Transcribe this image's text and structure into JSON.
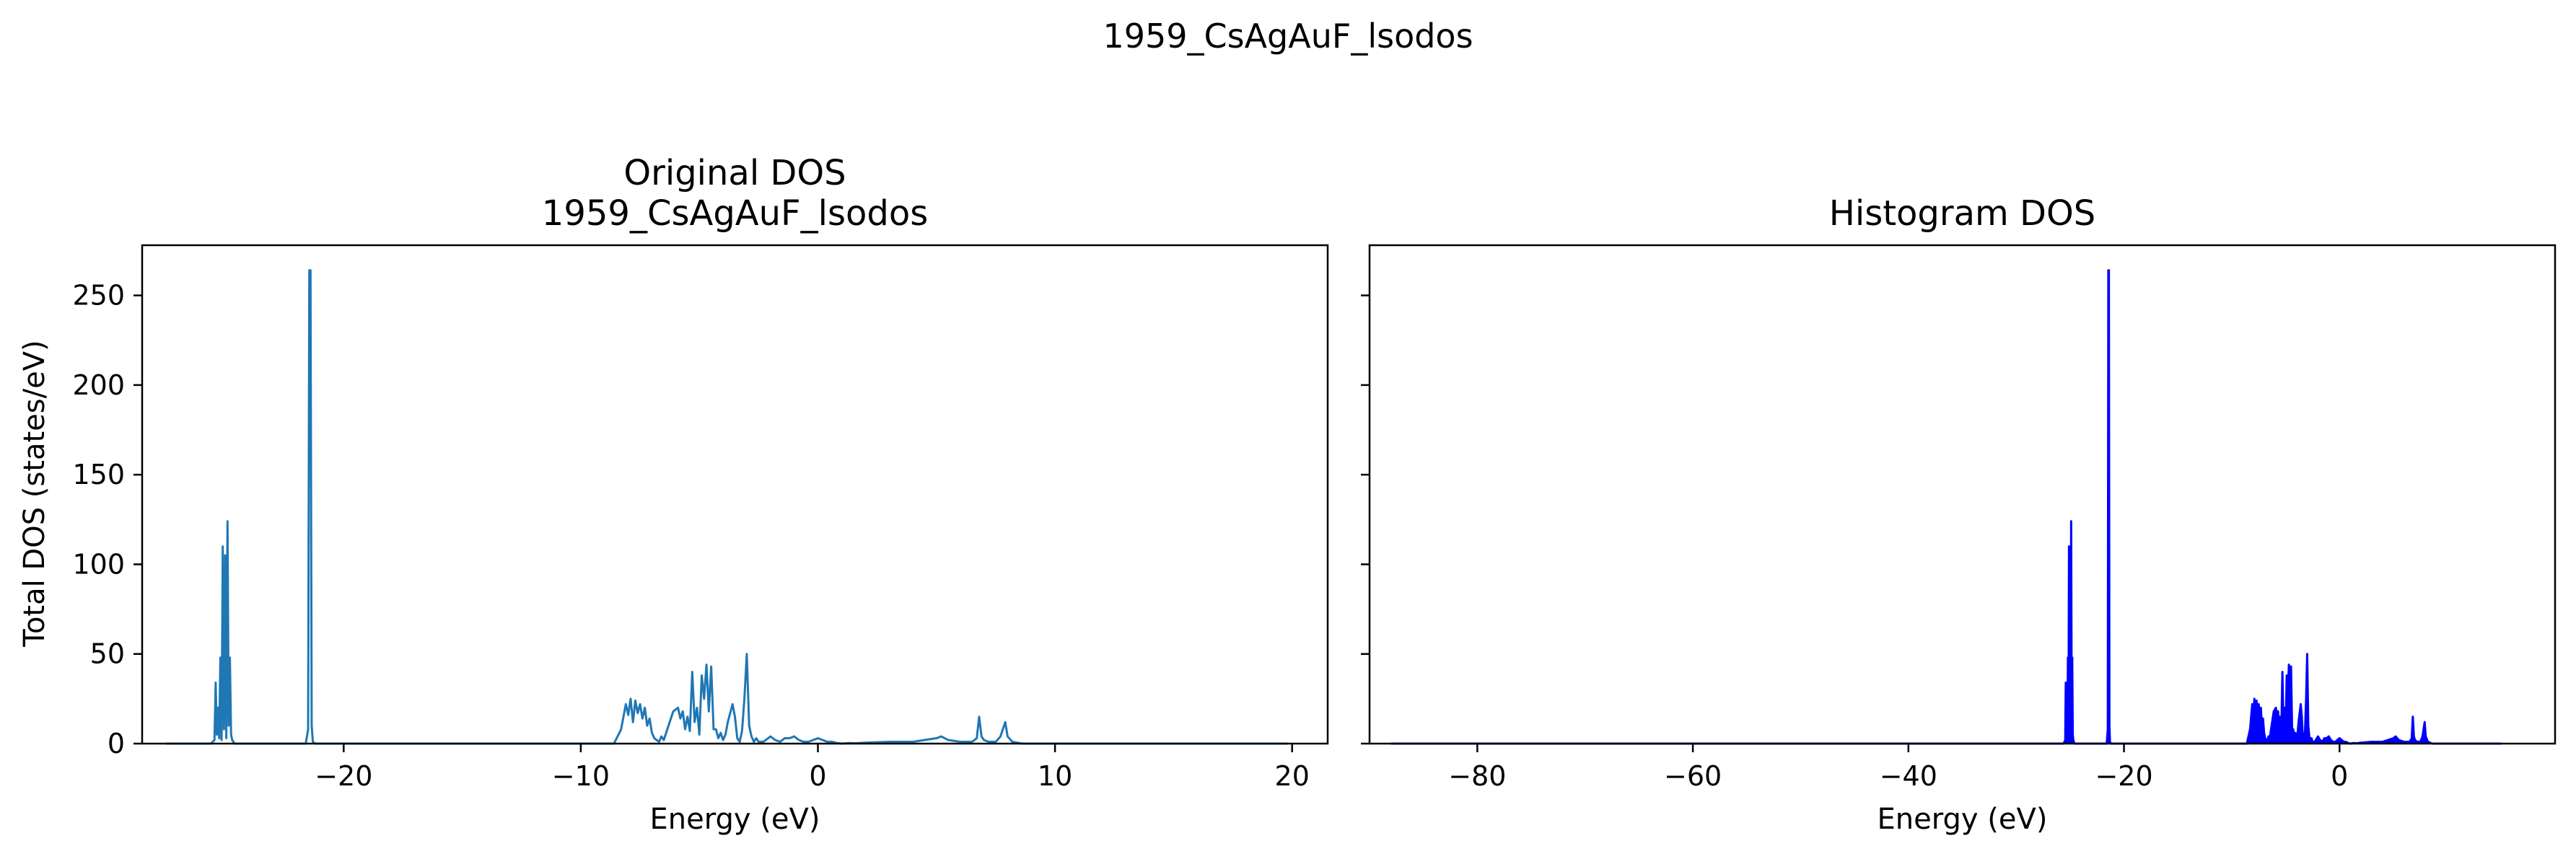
{
  "figure": {
    "suptitle": "1959_CsAgAuF_lsodos"
  },
  "chart_data": [
    {
      "type": "line",
      "title": "Original DOS",
      "subtitle": "1959_CsAgAuF_lsodos",
      "xlabel": "Energy (eV)",
      "ylabel": "Total DOS (states/eV)",
      "xlim": [
        -28.5,
        21.5
      ],
      "ylim": [
        0,
        278
      ],
      "xticks": [
        -20,
        -10,
        0,
        10,
        20
      ],
      "yticks": [
        0,
        50,
        100,
        150,
        200,
        250
      ],
      "color": "#1f77b4",
      "grid": false,
      "series": [
        {
          "x": [
            -27.5,
            -25.6,
            -25.45,
            -25.4,
            -25.35,
            -25.3,
            -25.25,
            -25.2,
            -25.15,
            -25.1,
            -25.05,
            -25.0,
            -24.95,
            -24.9,
            -24.85,
            -24.8,
            -24.75,
            -24.7,
            -24.6,
            -21.6,
            -21.5,
            -21.45,
            -21.4,
            -21.35,
            -21.3,
            -21.2,
            -8.6,
            -8.3,
            -8.1,
            -8.0,
            -7.9,
            -7.8,
            -7.7,
            -7.6,
            -7.5,
            -7.4,
            -7.3,
            -7.2,
            -7.1,
            -7.0,
            -6.9,
            -6.8,
            -6.7,
            -6.6,
            -6.5,
            -6.3,
            -6.1,
            -5.9,
            -5.8,
            -5.7,
            -5.6,
            -5.5,
            -5.4,
            -5.3,
            -5.2,
            -5.1,
            -5.0,
            -4.9,
            -4.8,
            -4.7,
            -4.6,
            -4.5,
            -4.4,
            -4.3,
            -4.2,
            -4.1,
            -4.0,
            -3.9,
            -3.8,
            -3.6,
            -3.5,
            -3.4,
            -3.3,
            -3.2,
            -3.1,
            -3.0,
            -2.9,
            -2.8,
            -2.7,
            -2.6,
            -2.5,
            -2.4,
            -2.3,
            -2.2,
            -2.0,
            -1.8,
            -1.6,
            -1.4,
            -1.2,
            -1.0,
            -0.8,
            -0.6,
            -0.4,
            -0.2,
            0.0,
            0.2,
            0.4,
            0.6,
            0.8,
            1.0,
            1.3,
            1.6,
            2.0,
            3.0,
            4.0,
            4.5,
            5.0,
            5.2,
            5.5,
            6.0,
            6.5,
            6.7,
            6.8,
            6.9,
            7.0,
            7.2,
            7.5,
            7.7,
            7.8,
            7.9,
            8.0,
            8.2,
            8.6,
            10.0,
            19.8
          ],
          "y": [
            0,
            0,
            2,
            34,
            5,
            20,
            3,
            48,
            2,
            110,
            8,
            105,
            3,
            124,
            10,
            48,
            5,
            2,
            0,
            0,
            8,
            264,
            264,
            10,
            1,
            0,
            0,
            8,
            22,
            16,
            25,
            12,
            24,
            17,
            22,
            14,
            20,
            10,
            14,
            6,
            3,
            2,
            1,
            4,
            2,
            10,
            18,
            20,
            14,
            18,
            8,
            15,
            7,
            40,
            12,
            20,
            5,
            38,
            25,
            44,
            18,
            43,
            8,
            8,
            3,
            6,
            2,
            5,
            12,
            22,
            15,
            3,
            1,
            7,
            25,
            50,
            10,
            4,
            1,
            3,
            1,
            1,
            1,
            2,
            4,
            2,
            1,
            3,
            3,
            4,
            2,
            1,
            1,
            2,
            3,
            2,
            1,
            1,
            0.3,
            0,
            0.3,
            0.2,
            0.5,
            1,
            1,
            2,
            3,
            4,
            2,
            1,
            1,
            3,
            15,
            4,
            2,
            1,
            1,
            4,
            8,
            12,
            4,
            1,
            0,
            0,
            0
          ]
        }
      ]
    },
    {
      "type": "area",
      "title": "Histogram DOS",
      "xlabel": "Energy (eV)",
      "xlim": [
        -90,
        20
      ],
      "ylim": [
        0,
        278
      ],
      "xticks": [
        -80,
        -60,
        -40,
        -20,
        0
      ],
      "yticks": [
        0,
        50,
        100,
        150,
        200,
        250
      ],
      "color": "#0000ff",
      "grid": false,
      "series": [
        {
          "x": [
            -88,
            -25.6,
            -25.45,
            -25.4,
            -25.35,
            -25.3,
            -25.25,
            -25.2,
            -25.15,
            -25.1,
            -25.05,
            -25.0,
            -24.95,
            -24.9,
            -24.85,
            -24.8,
            -24.75,
            -24.7,
            -24.6,
            -21.6,
            -21.5,
            -21.45,
            -21.4,
            -21.35,
            -21.3,
            -21.2,
            -8.6,
            -8.3,
            -8.1,
            -8.0,
            -7.9,
            -7.8,
            -7.7,
            -7.6,
            -7.5,
            -7.4,
            -7.3,
            -7.2,
            -7.1,
            -7.0,
            -6.9,
            -6.8,
            -6.7,
            -6.6,
            -6.5,
            -6.3,
            -6.1,
            -5.9,
            -5.8,
            -5.7,
            -5.6,
            -5.5,
            -5.4,
            -5.3,
            -5.2,
            -5.1,
            -5.0,
            -4.9,
            -4.8,
            -4.7,
            -4.6,
            -4.5,
            -4.4,
            -4.3,
            -4.2,
            -4.1,
            -4.0,
            -3.9,
            -3.8,
            -3.6,
            -3.5,
            -3.4,
            -3.3,
            -3.2,
            -3.1,
            -3.0,
            -2.9,
            -2.8,
            -2.7,
            -2.6,
            -2.5,
            -2.4,
            -2.3,
            -2.2,
            -2.0,
            -1.8,
            -1.6,
            -1.4,
            -1.2,
            -1.0,
            -0.8,
            -0.6,
            -0.4,
            -0.2,
            0.0,
            0.2,
            0.4,
            0.6,
            0.8,
            1.0,
            1.3,
            1.6,
            2.0,
            3.0,
            4.0,
            4.5,
            5.0,
            5.2,
            5.5,
            6.0,
            6.5,
            6.7,
            6.8,
            6.9,
            7.0,
            7.2,
            7.5,
            7.7,
            7.8,
            7.9,
            8.0,
            8.2,
            8.6,
            10.0,
            15.0
          ],
          "y": [
            0,
            0,
            2,
            34,
            5,
            20,
            3,
            48,
            2,
            110,
            8,
            105,
            3,
            124,
            10,
            48,
            5,
            2,
            0,
            0,
            8,
            264,
            264,
            10,
            1,
            0,
            0,
            8,
            22,
            16,
            25,
            12,
            24,
            17,
            22,
            14,
            20,
            10,
            14,
            6,
            3,
            2,
            1,
            4,
            2,
            10,
            18,
            20,
            14,
            18,
            8,
            15,
            7,
            40,
            12,
            20,
            5,
            38,
            25,
            44,
            18,
            43,
            8,
            8,
            3,
            6,
            2,
            5,
            12,
            22,
            15,
            3,
            1,
            7,
            25,
            50,
            10,
            4,
            1,
            3,
            1,
            1,
            1,
            2,
            4,
            2,
            1,
            3,
            3,
            4,
            2,
            1,
            1,
            2,
            3,
            2,
            1,
            1,
            0.3,
            0,
            0.3,
            0.2,
            0.5,
            1,
            1,
            2,
            3,
            4,
            2,
            1,
            1,
            3,
            15,
            4,
            2,
            1,
            1,
            4,
            8,
            12,
            4,
            1,
            0,
            0,
            0
          ]
        }
      ]
    }
  ]
}
